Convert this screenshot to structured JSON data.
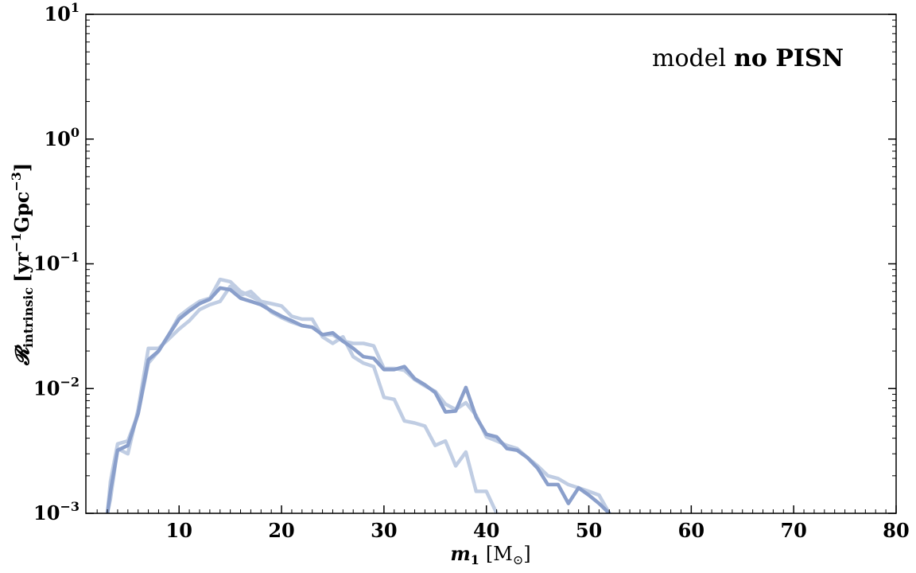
{
  "chart_data": {
    "type": "line",
    "xlabel": "m_1 [M_⊙]",
    "xlabel_parts": {
      "var": "m",
      "sub": "1",
      "unit_open": "[M",
      "unit_sub": "⊙",
      "unit_close": "]"
    },
    "ylabel": "R_intrinsic [yr^-1 Gpc^-3]",
    "ylabel_parts": {
      "var": "𝓡",
      "sub": "intrinsic",
      "unit_a": "[yr",
      "unit_a_exp": "−1",
      "unit_b": "Gpc",
      "unit_b_exp": "−3",
      "unit_close": "]"
    },
    "annotation": {
      "prefix": "model",
      "bold": "no PISN"
    },
    "xlim": [
      0.9,
      80
    ],
    "ylim": [
      0.001,
      10
    ],
    "yscale": "log",
    "grid": false,
    "x_major_ticks": [
      "10",
      "20",
      "30",
      "40",
      "50",
      "60",
      "70",
      "80"
    ],
    "y_major_ticks": [
      {
        "value": 0.001,
        "base": "10",
        "exp": "−3"
      },
      {
        "value": 0.01,
        "base": "10",
        "exp": "−2"
      },
      {
        "value": 0.1,
        "base": "10",
        "exp": "−1"
      },
      {
        "value": 1,
        "base": "10",
        "exp": "0"
      },
      {
        "value": 10,
        "base": "10",
        "exp": "1"
      }
    ],
    "series": [
      {
        "color": "#c0cde3",
        "x": [
          3.0,
          3.3,
          4.0,
          5.0,
          6.0,
          7.0,
          8.0,
          9.0,
          10.0,
          11.0,
          12.0,
          13.0,
          14.0,
          15.0,
          16.0,
          17.0,
          18.0,
          19.0,
          20.0,
          21.0,
          22.0,
          23.0,
          24.0,
          25.0,
          26.0,
          27.0,
          28.0,
          29.0,
          30.0,
          31.0,
          32.0,
          33.0,
          34.0,
          35.0,
          36.0,
          37.0,
          38.0,
          39.0,
          40.0,
          41.0,
          42.0,
          43.0,
          44.0,
          45.0,
          46.0,
          47.0,
          48.0,
          49.0,
          50.0,
          51.0,
          52.0
        ],
        "y": [
          0.001,
          0.0018,
          0.0036,
          0.0038,
          0.0063,
          0.016,
          0.02,
          0.027,
          0.038,
          0.044,
          0.05,
          0.053,
          0.075,
          0.072,
          0.06,
          0.055,
          0.05,
          0.041,
          0.037,
          0.034,
          0.032,
          0.031,
          0.027,
          0.027,
          0.024,
          0.023,
          0.023,
          0.022,
          0.0145,
          0.0145,
          0.014,
          0.0118,
          0.0105,
          0.0095,
          0.0075,
          0.0068,
          0.0077,
          0.0061,
          0.0041,
          0.0038,
          0.0035,
          0.0033,
          0.0028,
          0.0024,
          0.002,
          0.0019,
          0.0017,
          0.0016,
          0.0015,
          0.0014,
          0.001
        ]
      },
      {
        "color": "#c0cde3",
        "x": [
          3.0,
          3.3,
          4.0,
          5.0,
          6.0,
          7.0,
          8.0,
          9.0,
          10.0,
          11.0,
          12.0,
          13.0,
          14.0,
          15.0,
          16.0,
          17.0,
          18.0,
          19.0,
          20.0,
          21.0,
          22.0,
          23.0,
          24.0,
          25.0,
          26.0,
          27.0,
          28.0,
          29.0,
          30.0,
          31.0,
          32.0,
          33.0,
          34.0,
          35.0,
          36.0,
          37.0,
          38.0,
          39.0,
          40.0,
          41.0
        ],
        "y": [
          0.001,
          0.0013,
          0.0033,
          0.003,
          0.0068,
          0.021,
          0.021,
          0.025,
          0.03,
          0.035,
          0.043,
          0.047,
          0.05,
          0.066,
          0.056,
          0.06,
          0.05,
          0.048,
          0.046,
          0.038,
          0.036,
          0.036,
          0.026,
          0.023,
          0.026,
          0.018,
          0.016,
          0.015,
          0.0085,
          0.0082,
          0.0055,
          0.0053,
          0.005,
          0.0035,
          0.0038,
          0.0024,
          0.0031,
          0.0015,
          0.0015,
          0.001
        ]
      },
      {
        "color": "#8a9fcb",
        "x": [
          3.0,
          3.3,
          4.0,
          5.0,
          6.0,
          7.0,
          8.0,
          9.0,
          10.0,
          11.0,
          12.0,
          13.0,
          14.0,
          15.0,
          16.0,
          17.0,
          18.0,
          19.0,
          20.0,
          21.0,
          22.0,
          23.0,
          24.0,
          25.0,
          26.0,
          27.0,
          28.0,
          29.0,
          30.0,
          31.0,
          32.0,
          33.0,
          34.0,
          35.0,
          36.0,
          37.0,
          38.0,
          39.0,
          40.0,
          41.0,
          42.0,
          43.0,
          44.0,
          45.0,
          46.0,
          47.0,
          48.0,
          49.0,
          50.0,
          51.0,
          52.0
        ],
        "y": [
          0.001,
          0.0015,
          0.0032,
          0.0035,
          0.0063,
          0.017,
          0.02,
          0.027,
          0.036,
          0.042,
          0.048,
          0.052,
          0.064,
          0.062,
          0.053,
          0.05,
          0.047,
          0.042,
          0.038,
          0.035,
          0.032,
          0.031,
          0.027,
          0.028,
          0.024,
          0.021,
          0.018,
          0.0175,
          0.0142,
          0.0142,
          0.015,
          0.012,
          0.0107,
          0.0093,
          0.0065,
          0.0066,
          0.0102,
          0.0059,
          0.0043,
          0.0041,
          0.0033,
          0.0032,
          0.0028,
          0.0023,
          0.0017,
          0.0017,
          0.0012,
          0.0016,
          0.0014,
          0.0012,
          0.001
        ]
      }
    ]
  }
}
